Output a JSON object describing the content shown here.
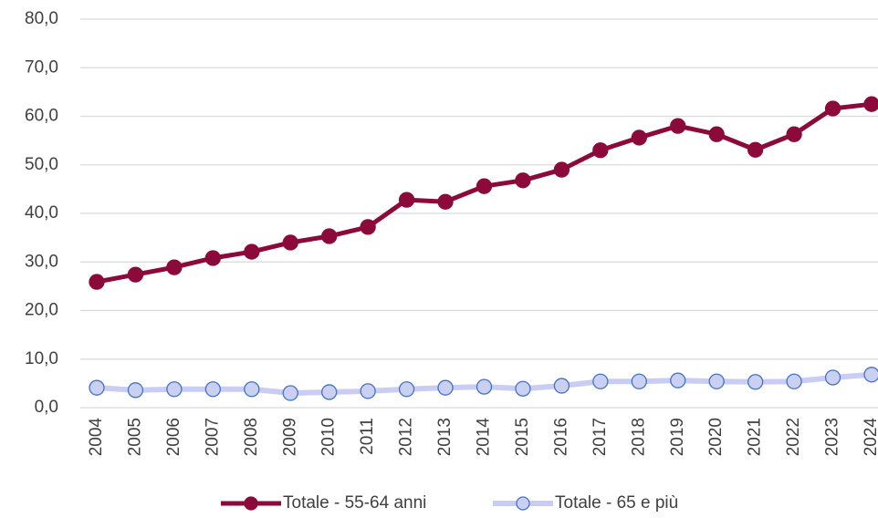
{
  "chart_data": {
    "type": "line",
    "categories": [
      "2004",
      "2005",
      "2006",
      "2007",
      "2008",
      "2009",
      "2010",
      "2011",
      "2012",
      "2013",
      "2014",
      "2015",
      "2016",
      "2017",
      "2018",
      "2019",
      "2020",
      "2021",
      "2022",
      "2023",
      "2024"
    ],
    "series": [
      {
        "name": "Totale - 55-64 anni",
        "color": "#8b0a3a",
        "marker_fill": "#8b0a3a",
        "values": [
          25.9,
          27.4,
          28.9,
          30.8,
          32.1,
          34.0,
          35.3,
          37.2,
          42.8,
          42.4,
          45.6,
          46.8,
          49.0,
          53.0,
          55.6,
          58.0,
          56.3,
          53.1,
          56.3,
          61.6,
          62.5
        ]
      },
      {
        "name": "Totale - 65 e più",
        "color": "#cacdf3",
        "marker_fill": "#c9d0f2",
        "marker_stroke": "#4472c4",
        "values": [
          4.1,
          3.6,
          3.8,
          3.8,
          3.8,
          3.0,
          3.2,
          3.4,
          3.8,
          4.1,
          4.3,
          3.9,
          4.5,
          5.4,
          5.4,
          5.6,
          5.4,
          5.3,
          5.4,
          6.2,
          6.8
        ]
      }
    ],
    "ylim": [
      0,
      80
    ],
    "yticks": [
      {
        "value": 0,
        "label": "0,0"
      },
      {
        "value": 10,
        "label": "10,0"
      },
      {
        "value": 20,
        "label": "20,0"
      },
      {
        "value": 30,
        "label": "30,0"
      },
      {
        "value": 40,
        "label": "40,0"
      },
      {
        "value": 50,
        "label": "50,0"
      },
      {
        "value": 60,
        "label": "60,0"
      },
      {
        "value": 70,
        "label": "70,0"
      },
      {
        "value": 80,
        "label": "80,0"
      }
    ],
    "grid": true,
    "legend": "bottom"
  }
}
